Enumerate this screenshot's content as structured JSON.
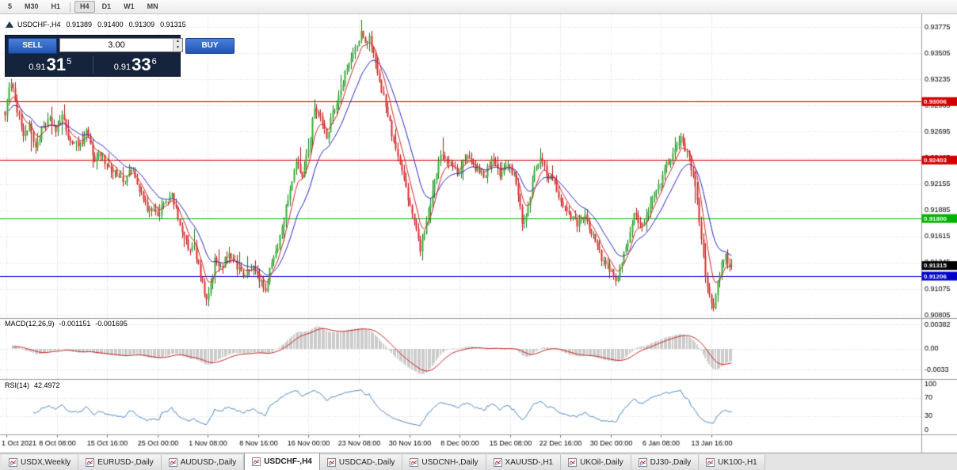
{
  "toolbar": {
    "timeframes": [
      "5",
      "M30",
      "H1",
      "H4",
      "D1",
      "W1",
      "MN"
    ],
    "active": "H4",
    "separator_index": 3
  },
  "chart_header": {
    "symbol": "USDCHF-,H4",
    "open": "0.91389",
    "high": "0.91400",
    "low": "0.91309",
    "close": "0.91315"
  },
  "trade_panel": {
    "sell_label": "SELL",
    "buy_label": "BUY",
    "volume": "3.00",
    "sell_price": {
      "prefix": "0.91",
      "big": "31",
      "sup": "5"
    },
    "buy_price": {
      "prefix": "0.91",
      "big": "33",
      "sup": "6"
    }
  },
  "chart_data": {
    "type": "candlestick",
    "symbol": "USDCHF-",
    "timeframe": "H4",
    "colors": {
      "up": "#2eb12e",
      "up_border": "#1d7a1d",
      "down": "#e22828",
      "down_border": "#b01616",
      "ma_fast": "#d02828",
      "ma_slow": "#2828c8",
      "macd_hist": "#c0c0c0",
      "macd_signal": "#cc2222",
      "rsi": "#4a86c8",
      "grid": "#d9d9d9"
    },
    "main": {
      "y_axis_labels": [
        "0.93775",
        "0.93505",
        "0.93235",
        "0.92965",
        "0.92695",
        "0.92425",
        "0.92155",
        "0.91885",
        "0.91615",
        "0.91345",
        "0.91075",
        "0.90805"
      ],
      "price_max": 0.9389,
      "price_min": 0.9079,
      "bars": 358,
      "hlines": [
        {
          "price": 0.93006,
          "color": "#d40000",
          "label": "0.93006"
        },
        {
          "price": 0.92403,
          "color": "#d40000",
          "label": "0.92403"
        },
        {
          "price": 0.918,
          "color": "#00b300",
          "label": "0.91800"
        },
        {
          "price": 0.91206,
          "color": "#0000cc",
          "label": "0.91206"
        }
      ],
      "current_price": {
        "price": 0.91315,
        "label": "0.91315",
        "color": "#000000"
      },
      "anchors": [
        [
          0,
          0.929
        ],
        [
          2,
          0.9312
        ],
        [
          4,
          0.9318
        ],
        [
          6,
          0.9292
        ],
        [
          9,
          0.9268
        ],
        [
          12,
          0.9274
        ],
        [
          15,
          0.9254
        ],
        [
          18,
          0.927
        ],
        [
          22,
          0.9281
        ],
        [
          25,
          0.9272
        ],
        [
          28,
          0.9284
        ],
        [
          32,
          0.926
        ],
        [
          36,
          0.9255
        ],
        [
          40,
          0.9268
        ],
        [
          44,
          0.9242
        ],
        [
          47,
          0.9248
        ],
        [
          50,
          0.9235
        ],
        [
          54,
          0.9228
        ],
        [
          58,
          0.9218
        ],
        [
          62,
          0.9232
        ],
        [
          66,
          0.9208
        ],
        [
          70,
          0.919
        ],
        [
          75,
          0.9182
        ],
        [
          78,
          0.9198
        ],
        [
          82,
          0.9202
        ],
        [
          86,
          0.9175
        ],
        [
          90,
          0.9148
        ],
        [
          93,
          0.915
        ],
        [
          96,
          0.912
        ],
        [
          99,
          0.9094
        ],
        [
          101,
          0.911
        ],
        [
          103,
          0.9136
        ],
        [
          106,
          0.9128
        ],
        [
          110,
          0.9146
        ],
        [
          114,
          0.913
        ],
        [
          118,
          0.9122
        ],
        [
          122,
          0.913
        ],
        [
          125,
          0.9118
        ],
        [
          128,
          0.9104
        ],
        [
          131,
          0.9136
        ],
        [
          134,
          0.9152
        ],
        [
          137,
          0.918
        ],
        [
          140,
          0.9212
        ],
        [
          143,
          0.9236
        ],
        [
          146,
          0.9226
        ],
        [
          149,
          0.9252
        ],
        [
          152,
          0.9296
        ],
        [
          155,
          0.9284
        ],
        [
          158,
          0.9264
        ],
        [
          161,
          0.9288
        ],
        [
          164,
          0.9308
        ],
        [
          167,
          0.933
        ],
        [
          170,
          0.9344
        ],
        [
          173,
          0.936
        ],
        [
          175,
          0.9372
        ],
        [
          177,
          0.9358
        ],
        [
          179,
          0.9366
        ],
        [
          181,
          0.9352
        ],
        [
          184,
          0.9322
        ],
        [
          187,
          0.9296
        ],
        [
          190,
          0.9268
        ],
        [
          193,
          0.9242
        ],
        [
          196,
          0.9222
        ],
        [
          198,
          0.9202
        ],
        [
          201,
          0.9174
        ],
        [
          204,
          0.915
        ],
        [
          206,
          0.9168
        ],
        [
          208,
          0.9188
        ],
        [
          212,
          0.923
        ],
        [
          215,
          0.9248
        ],
        [
          219,
          0.9235
        ],
        [
          223,
          0.9226
        ],
        [
          227,
          0.9246
        ],
        [
          231,
          0.9232
        ],
        [
          235,
          0.9222
        ],
        [
          239,
          0.9239
        ],
        [
          243,
          0.9226
        ],
        [
          247,
          0.9236
        ],
        [
          251,
          0.9218
        ],
        [
          254,
          0.9176
        ],
        [
          257,
          0.919
        ],
        [
          260,
          0.923
        ],
        [
          263,
          0.9242
        ],
        [
          266,
          0.9226
        ],
        [
          270,
          0.9216
        ],
        [
          273,
          0.9196
        ],
        [
          277,
          0.9186
        ],
        [
          281,
          0.9174
        ],
        [
          285,
          0.9182
        ],
        [
          289,
          0.9162
        ],
        [
          292,
          0.9144
        ],
        [
          295,
          0.9132
        ],
        [
          298,
          0.9126
        ],
        [
          300,
          0.9112
        ],
        [
          303,
          0.9138
        ],
        [
          306,
          0.9158
        ],
        [
          309,
          0.9184
        ],
        [
          312,
          0.9172
        ],
        [
          315,
          0.9184
        ],
        [
          318,
          0.9202
        ],
        [
          322,
          0.9218
        ],
        [
          325,
          0.9235
        ],
        [
          329,
          0.9252
        ],
        [
          332,
          0.9262
        ],
        [
          334,
          0.925
        ],
        [
          336,
          0.9242
        ],
        [
          338,
          0.9224
        ],
        [
          340,
          0.9196
        ],
        [
          342,
          0.916
        ],
        [
          344,
          0.9124
        ],
        [
          346,
          0.91
        ],
        [
          348,
          0.909
        ],
        [
          350,
          0.9118
        ],
        [
          352,
          0.9132
        ],
        [
          354,
          0.914
        ],
        [
          356,
          0.9128
        ],
        [
          357,
          0.91315
        ]
      ]
    },
    "x_axis_labels": [
      "1 Oct 2021",
      "8 Oct 08:00",
      "15 Oct 16:00",
      "25 Oct 00:00",
      "1 Nov 08:00",
      "8 Nov 16:00",
      "16 Nov 00:00",
      "23 Nov 08:00",
      "30 Nov 16:00",
      "8 Dec 00:00",
      "15 Dec 08:00",
      "22 Dec 16:00",
      "30 Dec 00:00",
      "6 Jan 08:00",
      "13 Jan 16:00"
    ],
    "macd": {
      "label": "MACD(12,26,9)",
      "value_main": "-0.001151",
      "value_signal": "-0.001695",
      "axis": [
        "0.00382",
        "0.00",
        "-0.0033"
      ],
      "half_range": 0.0045
    },
    "rsi": {
      "label": "RSI(14)",
      "value": "42.4972",
      "axis": [
        "100",
        "70",
        "30",
        "0"
      ],
      "levels": [
        70,
        30
      ],
      "display_range": [
        -10,
        110
      ]
    }
  },
  "tabs": [
    {
      "label": "USDX,Weekly"
    },
    {
      "label": "EURUSD-,Daily"
    },
    {
      "label": "AUDUSD-,Daily"
    },
    {
      "label": "USDCHF-,H4",
      "active": true
    },
    {
      "label": "USDCAD-,Daily"
    },
    {
      "label": "USDCNH-,Daily"
    },
    {
      "label": "XAUUSD-,H1"
    },
    {
      "label": "UKOil-,Daily"
    },
    {
      "label": "DJ30-,Daily"
    },
    {
      "label": "UK100-,H1"
    }
  ]
}
